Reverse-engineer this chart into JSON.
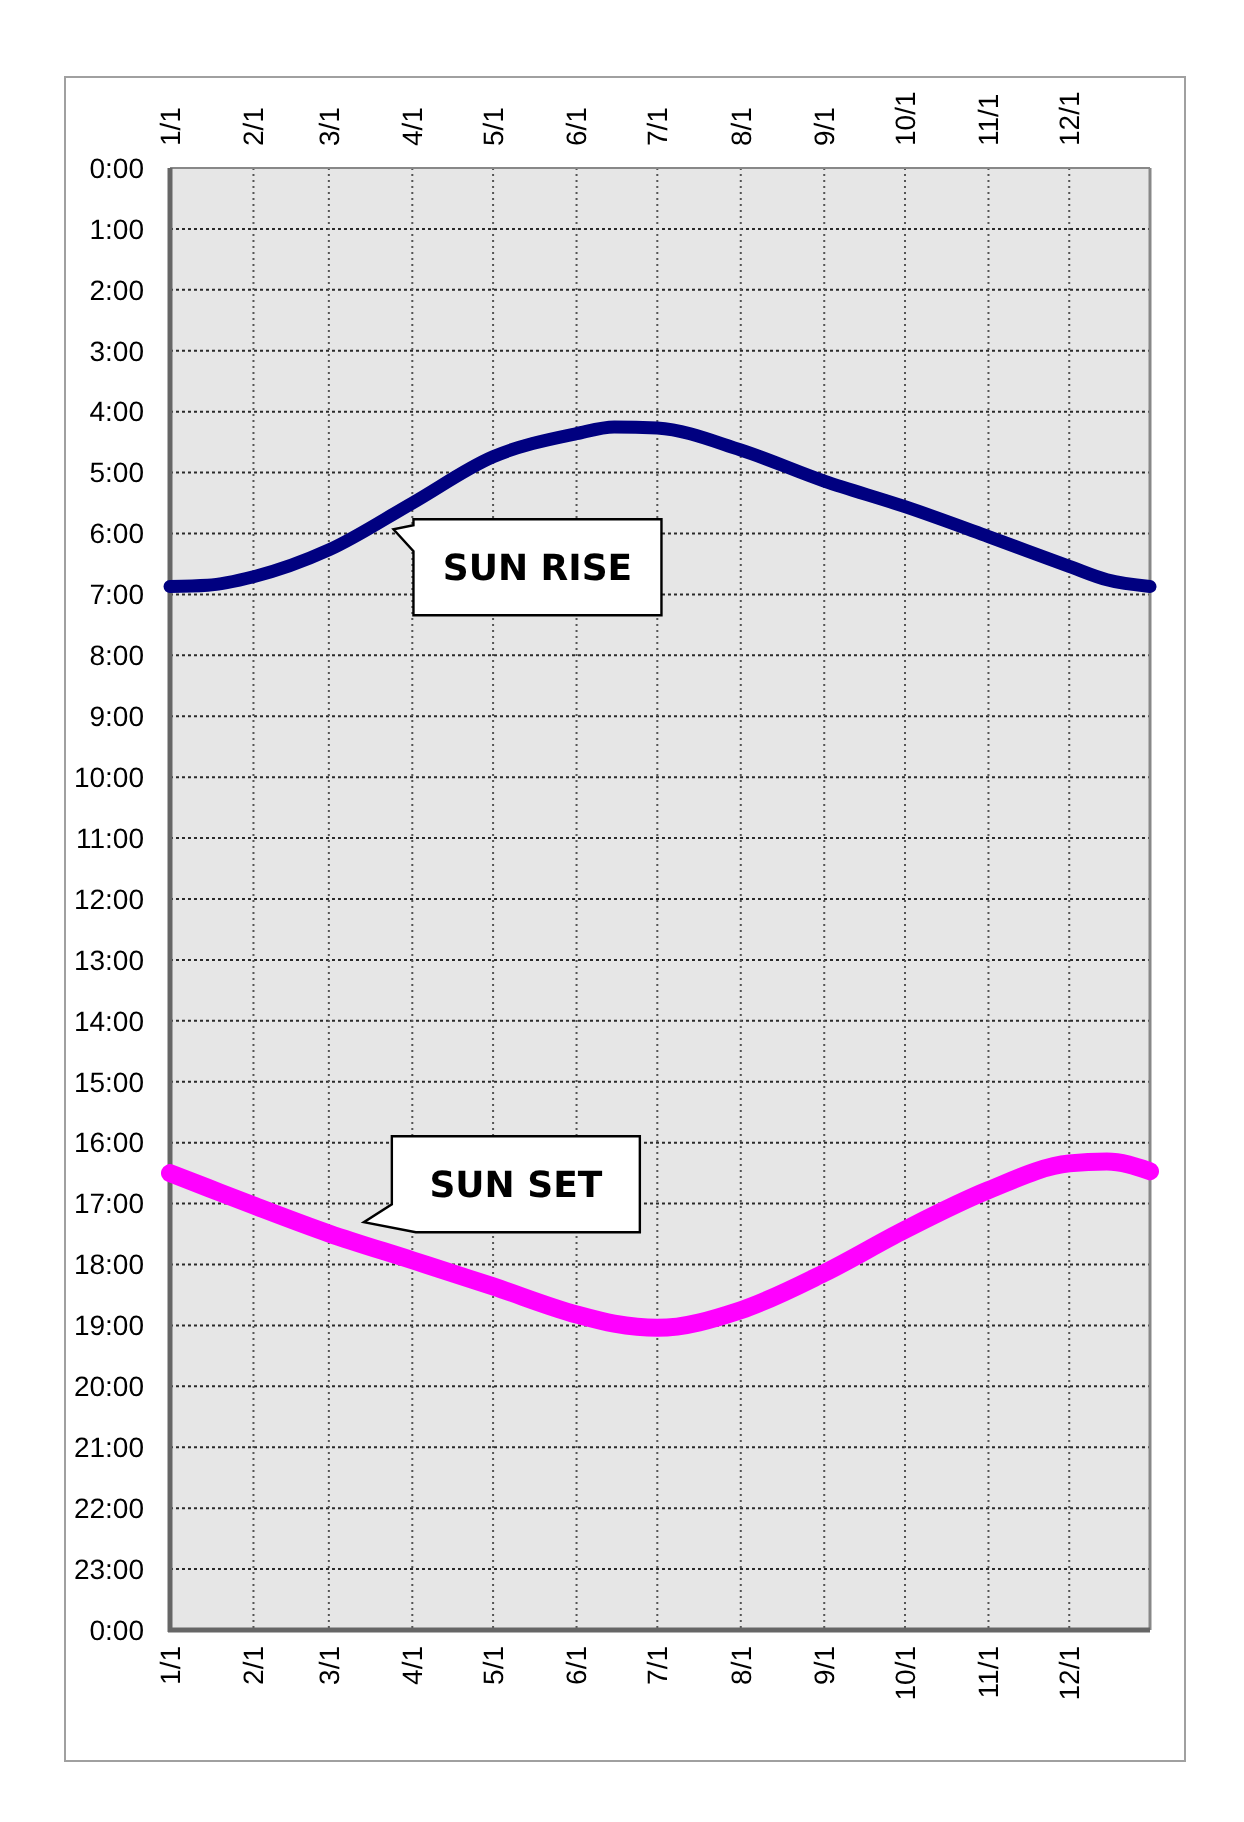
{
  "chart_data": {
    "type": "line",
    "xlim": [
      "--01-01",
      "--12-31"
    ],
    "xticks": [
      {
        "value": "--01-01",
        "label": "1/1"
      },
      {
        "value": "--02-01",
        "label": "2/1"
      },
      {
        "value": "--03-01",
        "label": "3/1"
      },
      {
        "value": "--04-01",
        "label": "4/1"
      },
      {
        "value": "--05-01",
        "label": "5/1"
      },
      {
        "value": "--06-01",
        "label": "6/1"
      },
      {
        "value": "--07-01",
        "label": "7/1"
      },
      {
        "value": "--08-01",
        "label": "8/1"
      },
      {
        "value": "--09-01",
        "label": "9/1"
      },
      {
        "value": "--10-01",
        "label": "10/1"
      },
      {
        "value": "--11-01",
        "label": "11/1"
      },
      {
        "value": "--12-01",
        "label": "12/1"
      }
    ],
    "x2lim": [
      "--01-01",
      "--12-31"
    ],
    "x2ticks": [
      {
        "value": "--01-01",
        "label": "1/1"
      },
      {
        "value": "--02-01",
        "label": "2/1"
      },
      {
        "value": "--03-01",
        "label": "3/1"
      },
      {
        "value": "--04-01",
        "label": "4/1"
      },
      {
        "value": "--05-01",
        "label": "5/1"
      },
      {
        "value": "--06-01",
        "label": "6/1"
      },
      {
        "value": "--07-01",
        "label": "7/1"
      },
      {
        "value": "--08-01",
        "label": "8/1"
      },
      {
        "value": "--09-01",
        "label": "9/1"
      },
      {
        "value": "--10-01",
        "label": "10/1"
      },
      {
        "value": "--11-01",
        "label": "11/1"
      },
      {
        "value": "--12-01",
        "label": "12/1"
      }
    ],
    "ylim": [
      24,
      0
    ],
    "yticks": [
      {
        "value": 0,
        "label": "0:00"
      },
      {
        "value": 1,
        "label": "1:00"
      },
      {
        "value": 2,
        "label": "2:00"
      },
      {
        "value": 3,
        "label": "3:00"
      },
      {
        "value": 4,
        "label": "4:00"
      },
      {
        "value": 5,
        "label": "5:00"
      },
      {
        "value": 6,
        "label": "6:00"
      },
      {
        "value": 7,
        "label": "7:00"
      },
      {
        "value": 8,
        "label": "8:00"
      },
      {
        "value": 9,
        "label": "9:00"
      },
      {
        "value": 10,
        "label": "10:00"
      },
      {
        "value": 11,
        "label": "11:00"
      },
      {
        "value": 12,
        "label": "12:00"
      },
      {
        "value": 13,
        "label": "13:00"
      },
      {
        "value": 14,
        "label": "14:00"
      },
      {
        "value": 15,
        "label": "15:00"
      },
      {
        "value": 16,
        "label": "16:00"
      },
      {
        "value": 17,
        "label": "17:00"
      },
      {
        "value": 18,
        "label": "18:00"
      },
      {
        "value": 19,
        "label": "19:00"
      },
      {
        "value": 20,
        "label": "20:00"
      },
      {
        "value": 21,
        "label": "21:00"
      },
      {
        "value": 22,
        "label": "22:00"
      },
      {
        "value": 23,
        "label": "23:00"
      },
      {
        "value": 24,
        "label": "0:00"
      }
    ],
    "grid": true,
    "x": [
      "--01-01",
      "--01-15",
      "--02-01",
      "--03-01",
      "--04-01",
      "--05-01",
      "--06-01",
      "--06-15",
      "--07-01",
      "--08-01",
      "--09-01",
      "--10-01",
      "--11-01",
      "--12-01",
      "--12-15",
      "--12-31"
    ],
    "series": [
      {
        "color": "#000080",
        "values": [
          6.87,
          6.85,
          6.71,
          6.27,
          5.5,
          4.74,
          4.36,
          4.25,
          4.27,
          4.63,
          5.14,
          5.56,
          6.05,
          6.54,
          6.76,
          6.87
        ]
      },
      {
        "color": "#ff00ff",
        "values": [
          16.5,
          16.74,
          17.03,
          17.49,
          17.93,
          18.36,
          18.82,
          18.97,
          19.04,
          18.75,
          18.14,
          17.43,
          16.78,
          16.34,
          16.31,
          16.47
        ]
      }
    ],
    "annotations": [
      {
        "text": "SUN RISE",
        "x": "--03-25",
        "y": 5.7
      },
      {
        "text": "SUN SET",
        "x": "--03-14",
        "y": 17.7
      }
    ]
  }
}
